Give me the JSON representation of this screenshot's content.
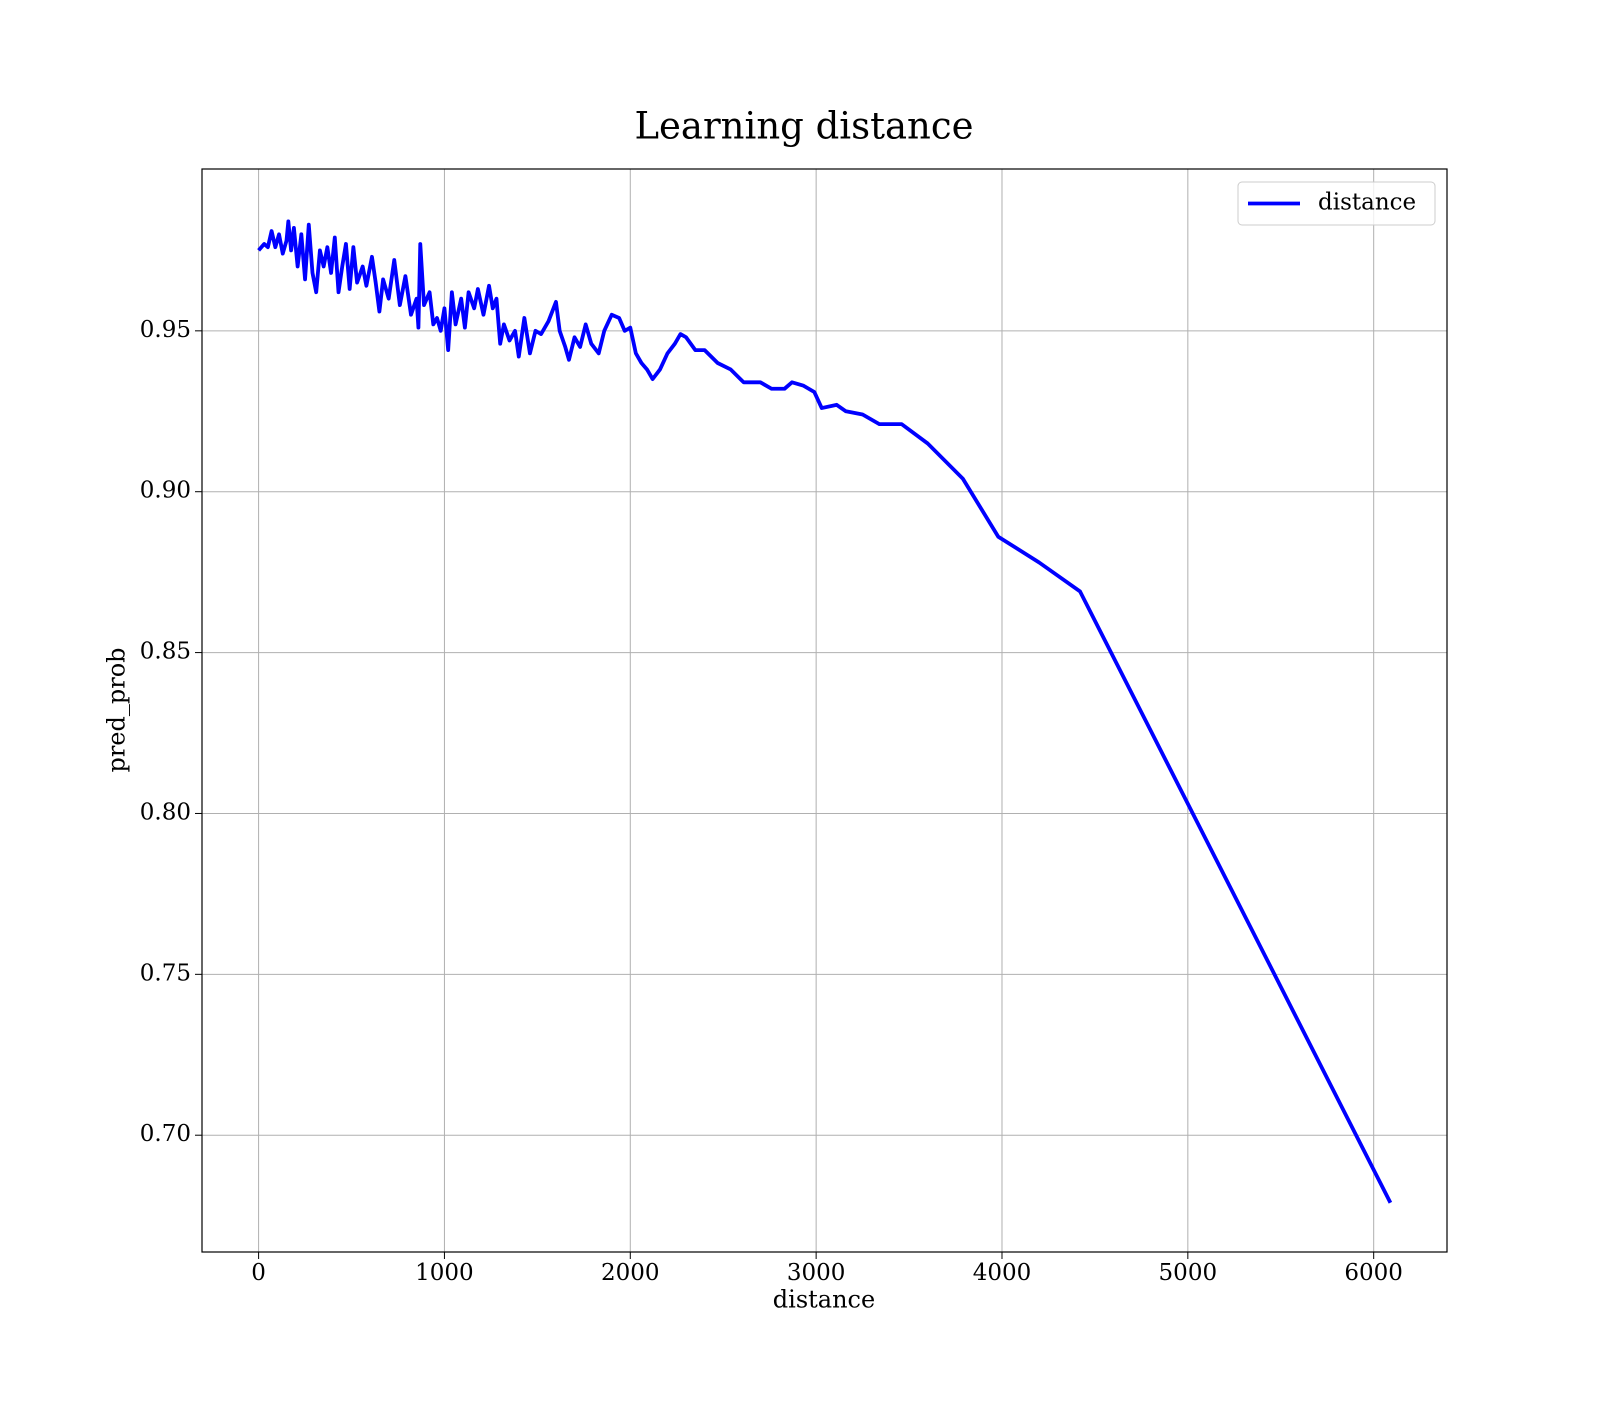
{
  "chart_data": {
    "type": "line",
    "title": "Learning distance",
    "xlabel": "distance",
    "ylabel": "pred_prob",
    "x": [
      0,
      30,
      50,
      70,
      90,
      110,
      130,
      150,
      160,
      175,
      190,
      210,
      230,
      250,
      270,
      290,
      310,
      330,
      350,
      370,
      390,
      410,
      430,
      450,
      470,
      490,
      510,
      530,
      560,
      580,
      610,
      630,
      650,
      670,
      700,
      730,
      760,
      790,
      820,
      850,
      860,
      870,
      890,
      920,
      940,
      960,
      980,
      1000,
      1020,
      1040,
      1060,
      1090,
      1110,
      1130,
      1160,
      1180,
      1210,
      1240,
      1260,
      1280,
      1300,
      1320,
      1350,
      1380,
      1400,
      1430,
      1460,
      1490,
      1520,
      1560,
      1600,
      1620,
      1650,
      1670,
      1700,
      1730,
      1760,
      1790,
      1830,
      1860,
      1900,
      1940,
      1970,
      2000,
      2030,
      2060,
      2090,
      2120,
      2160,
      2200,
      2240,
      2270,
      2300,
      2350,
      2400,
      2470,
      2540,
      2610,
      2700,
      2760,
      2830,
      2870,
      2930,
      2990,
      3030,
      3110,
      3160,
      3250,
      3340,
      3460,
      3600,
      3790,
      3980,
      4200,
      4420,
      6090
    ],
    "series": [
      {
        "name": "distance",
        "color": "#0000ff",
        "values": [
          0.975,
          0.977,
          0.976,
          0.981,
          0.976,
          0.98,
          0.974,
          0.978,
          0.984,
          0.975,
          0.982,
          0.97,
          0.98,
          0.966,
          0.983,
          0.968,
          0.962,
          0.975,
          0.97,
          0.976,
          0.968,
          0.979,
          0.962,
          0.97,
          0.977,
          0.963,
          0.976,
          0.965,
          0.97,
          0.964,
          0.973,
          0.965,
          0.956,
          0.966,
          0.96,
          0.972,
          0.958,
          0.967,
          0.955,
          0.96,
          0.951,
          0.977,
          0.958,
          0.962,
          0.952,
          0.954,
          0.95,
          0.957,
          0.944,
          0.962,
          0.952,
          0.96,
          0.951,
          0.962,
          0.957,
          0.963,
          0.955,
          0.964,
          0.957,
          0.96,
          0.946,
          0.952,
          0.947,
          0.95,
          0.942,
          0.954,
          0.943,
          0.95,
          0.949,
          0.953,
          0.959,
          0.95,
          0.945,
          0.941,
          0.948,
          0.945,
          0.952,
          0.946,
          0.943,
          0.95,
          0.955,
          0.954,
          0.95,
          0.951,
          0.943,
          0.94,
          0.938,
          0.935,
          0.938,
          0.943,
          0.946,
          0.949,
          0.948,
          0.944,
          0.944,
          0.94,
          0.938,
          0.934,
          0.934,
          0.932,
          0.932,
          0.934,
          0.933,
          0.931,
          0.926,
          0.927,
          0.925,
          0.924,
          0.921,
          0.921,
          0.915,
          0.904,
          0.886,
          0.878,
          0.869,
          0.679
        ]
      }
    ],
    "xlim": [
      -304.5,
      6394.5
    ],
    "ylim": [
      0.6637,
      1.0003
    ],
    "xticks": [
      0,
      1000,
      2000,
      3000,
      4000,
      5000,
      6000
    ],
    "yticks": [
      {
        "value": 0.7,
        "label": "0.70"
      },
      0.75,
      {
        "value": 0.8,
        "label": "0.80"
      },
      0.85,
      {
        "value": 0.9,
        "label": "0.90"
      },
      0.95
    ],
    "grid": true,
    "legend": "upper right"
  }
}
